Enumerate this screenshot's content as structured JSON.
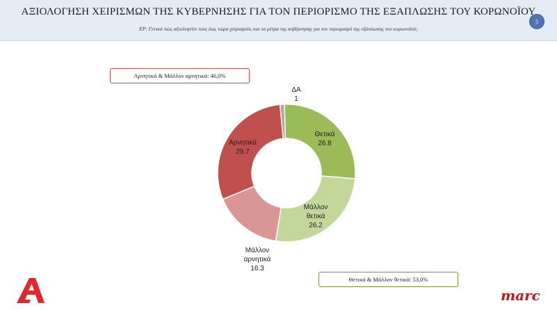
{
  "header": {
    "title": "ΑΞΙΟΛΟΓΗΣΗ ΧΕΙΡΙΣΜΩΝ ΤΗΣ ΚΥΒΕΡΝΗΣΗΣ ΓΙΑ ΤΟΝ ΠΕΡΙΟΡΙΣΜΟ ΤΗΣ ΕΞΑΠΛΩΣΗΣ ΤΟΥ ΚΟΡΩΝΟΪΟΥ",
    "subtitle": "ΕΡ: Γενικά πώς αξιολογείτε τους έως τώρα χειρισμούς και τα μέτρα της κυβέρνησης για τον περιορισμό της εξάπλωσης του κορωνοϊού;",
    "page_number": "5"
  },
  "summaries": {
    "negative": "Αρνητικά & Μάλλον αρνητικά: 46,0%",
    "positive": "Θετικά & Μάλλον θετικά: 53,0%"
  },
  "branding": {
    "right_logo": "marc",
    "left_logo_color": "#e3262b"
  },
  "chart_data": {
    "type": "pie",
    "donut": true,
    "categories": [
      "Θετικά",
      "Μάλλον θετικά",
      "Μάλλον αρνητικά",
      "Αρνητικά",
      "ΔΑ"
    ],
    "values": [
      26.8,
      26.2,
      16.3,
      29.7,
      1
    ],
    "value_labels": [
      "26.8",
      "26.2",
      "16.3",
      "29.7",
      "1"
    ],
    "colors": [
      "#9bbb59",
      "#c4d79b",
      "#da9694",
      "#c0504d",
      "#a6a6a6"
    ]
  }
}
